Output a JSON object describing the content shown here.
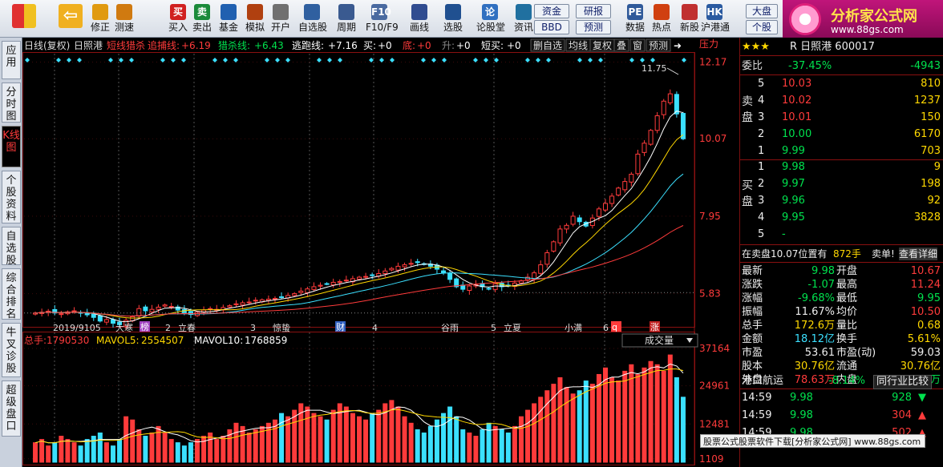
{
  "toolbar": {
    "buttons": [
      {
        "label": "",
        "icon": "grid-icon"
      },
      {
        "label": "",
        "icon": "back-arrow-icon"
      },
      {
        "label": "修正",
        "icon": "up-down-arrows-icon"
      },
      {
        "label": "测速",
        "icon": "clock-icon"
      },
      {
        "label": "买入",
        "icon": "buy-icon",
        "icon_text": "买"
      },
      {
        "label": "卖出",
        "icon": "sell-icon",
        "icon_text": "卖"
      },
      {
        "label": "基金",
        "icon": "fund-icon"
      },
      {
        "label": "模拟",
        "icon": "hammer-icon"
      },
      {
        "label": "开户",
        "icon": "lock-icon"
      },
      {
        "label": "自选股",
        "icon": "star-folder-icon"
      },
      {
        "label": "周期",
        "icon": "period-icon"
      },
      {
        "label": "F10/F9",
        "icon": "f10-icon",
        "icon_text": "F10"
      },
      {
        "label": "画线",
        "icon": "pencil-icon"
      },
      {
        "label": "选股",
        "icon": "select-stock-icon"
      },
      {
        "label": "论股堂",
        "icon": "forum-icon",
        "icon_text": "论"
      },
      {
        "label": "资讯",
        "icon": "news-icon"
      },
      {
        "label": "数据",
        "icon": "pe-icon",
        "icon_text": "PE"
      },
      {
        "label": "热点",
        "icon": "fire-icon"
      },
      {
        "label": "新股",
        "icon": "new-stock-icon"
      },
      {
        "label": "沪港通",
        "icon": "hk-connect-icon",
        "icon_text": "HK"
      }
    ],
    "pill_zijin": "资金",
    "pill_bbd": "BBD",
    "pill_yanbao": "研报",
    "pill_yuce": "预测",
    "pill_dapan": "大盘",
    "pill_gegu": "个股",
    "logo_title": "分析家公式网",
    "logo_url": "www.88gs.com"
  },
  "sidetabs": [
    "应用",
    "分时图",
    "K线图",
    "个股资料",
    "自选股",
    "综合排名",
    "牛叉诊股",
    "超级盘口"
  ],
  "sidetab_active": 2,
  "chart_header": {
    "title": "日线(复权)",
    "stock": "日照港",
    "ind1_name": "短线猎杀",
    "ind1_sub": "追捕线:",
    "ind1_val": "+6.19",
    "ind2_name": "猎杀线:",
    "ind2_val": "+6.43",
    "ind3_name": "逃跑线:",
    "ind3_val": "+7.16",
    "buy_label": "买:",
    "buy_val": "+0",
    "bottom_label": "底:",
    "bottom_val": "+0",
    "rise_label": "升:",
    "rise_val": "+0",
    "short_buy_label": "短买:",
    "short_buy_val": "+0",
    "buttons": [
      "删自选",
      "均线",
      "复权",
      "叠",
      "窗",
      "预测"
    ],
    "pressure_label": "压力"
  },
  "price_axis": [
    "12.17",
    "10.07",
    "7.95",
    "5.83"
  ],
  "vol_axis": [
    "37164",
    "24961",
    "12481",
    "1109"
  ],
  "time_axis": [
    "2019/9105",
    "大寒",
    "2",
    "立春",
    "3",
    "惊蛰",
    "4",
    "谷雨",
    "5",
    "立夏",
    "小满",
    "6"
  ],
  "time_badges": [
    "榜",
    "财",
    "q",
    "涨"
  ],
  "peak_label": "11.75",
  "vol_header": {
    "total_label": "总手:",
    "total_val": "1790530",
    "ma5_label": "MAVOL5:",
    "ma5_val": "2554507",
    "ma10_label": "MAVOL10:",
    "ma10_val": "1768859",
    "select": "成交量"
  },
  "chart_data": {
    "type": "candlestick",
    "title": "日照港 日线(复权)",
    "price_ticks": [
      12.17,
      10.07,
      7.95,
      5.83
    ],
    "price_ylim": [
      4.9,
      12.4
    ],
    "volume_ticks": [
      37164,
      24961,
      12481,
      1109
    ],
    "close": [
      5.3,
      5.32,
      5.35,
      5.3,
      5.28,
      5.33,
      5.36,
      5.31,
      5.25,
      5.18,
      5.08,
      5.12,
      5.02,
      4.98,
      5.1,
      5.2,
      5.42,
      5.36,
      5.4,
      5.46,
      5.52,
      5.48,
      5.38,
      5.3,
      5.26,
      5.32,
      5.38,
      5.42,
      5.4,
      5.45,
      5.5,
      5.55,
      5.58,
      5.6,
      5.65,
      5.66,
      5.68,
      5.7,
      5.74,
      5.78,
      5.83,
      5.9,
      5.96,
      6.02,
      6.06,
      6.1,
      6.14,
      6.16,
      6.2,
      6.24,
      6.28,
      6.3,
      6.34,
      6.38,
      6.45,
      6.52,
      6.58,
      6.62,
      6.66,
      6.68,
      6.64,
      6.58,
      6.5,
      6.4,
      6.22,
      6.02,
      5.95,
      6.04,
      6.08,
      6.02,
      5.96,
      6.1,
      6.02,
      6.06,
      6.12,
      6.18,
      6.28,
      6.4,
      6.62,
      6.95,
      7.25,
      7.6,
      7.7,
      7.95,
      7.8,
      7.68,
      7.9,
      8.15,
      8.3,
      8.5,
      8.72,
      8.9,
      9.1,
      9.65,
      9.95,
      10.3,
      10.7,
      11.1,
      11.3,
      10.75,
      10.07
    ],
    "volume": [
      6,
      7,
      5,
      6,
      8,
      7,
      6,
      5,
      7,
      8,
      9,
      6,
      5,
      7,
      14,
      13,
      10,
      8,
      9,
      11,
      9,
      7,
      6,
      5,
      6,
      7,
      8,
      9,
      7,
      8,
      10,
      12,
      11,
      9,
      10,
      11,
      12,
      13,
      15,
      14,
      16,
      18,
      17,
      15,
      14,
      13,
      16,
      18,
      17,
      15,
      14,
      13,
      15,
      16,
      18,
      19,
      17,
      14,
      12,
      10,
      9,
      11,
      13,
      15,
      17,
      14,
      10,
      9,
      8,
      10,
      12,
      11,
      10,
      9,
      11,
      14,
      16,
      18,
      20,
      22,
      24,
      26,
      23,
      21,
      22,
      25,
      24,
      27,
      29,
      26,
      25,
      28,
      30,
      27,
      29,
      31,
      30,
      28,
      33,
      26,
      20
    ]
  },
  "quote": {
    "stock_line": "R 日照港 600017",
    "stars": "★★★",
    "weibi_label": "委比",
    "weibi_pct": "-37.45%",
    "weibi_val": "-4943",
    "sell_label": "卖盘",
    "buy_label": "买盘",
    "sells": [
      {
        "n": "5",
        "p": "10.03",
        "v": "810"
      },
      {
        "n": "4",
        "p": "10.02",
        "v": "1237"
      },
      {
        "n": "3",
        "p": "10.01",
        "v": "150"
      },
      {
        "n": "2",
        "p": "10.00",
        "v": "6170"
      },
      {
        "n": "1",
        "p": "9.99",
        "v": "703"
      }
    ],
    "buys": [
      {
        "n": "1",
        "p": "9.98",
        "v": "9"
      },
      {
        "n": "2",
        "p": "9.97",
        "v": "198"
      },
      {
        "n": "3",
        "p": "9.96",
        "v": "92"
      },
      {
        "n": "4",
        "p": "9.95",
        "v": "3828"
      },
      {
        "n": "5",
        "p": "-",
        "v": ""
      }
    ],
    "order_line_left": "在卖盘10.07位置有",
    "order_line_mid": "872手",
    "order_line_right": "卖单!",
    "order_link": "查看详细",
    "stats_left": [
      {
        "k": "最新",
        "v": "9.98",
        "c": "grn"
      },
      {
        "k": "涨跌",
        "v": "-1.07",
        "c": "grn"
      },
      {
        "k": "涨幅",
        "v": "-9.68%",
        "c": "grn"
      },
      {
        "k": "振幅",
        "v": "11.67%",
        "c": "wht"
      },
      {
        "k": "总手",
        "v": "172.6万",
        "c": "yel"
      },
      {
        "k": "金额",
        "v": "18.12亿",
        "c": "cyn"
      },
      {
        "k": "市盈",
        "v": "53.61",
        "c": "wht"
      },
      {
        "k": "股本",
        "v": "30.76亿",
        "c": "yel"
      },
      {
        "k": "外盘",
        "v": "78.63万",
        "c": "red"
      }
    ],
    "stats_right": [
      {
        "k": "开盘",
        "v": "10.67",
        "c": "red"
      },
      {
        "k": "最高",
        "v": "11.24",
        "c": "red"
      },
      {
        "k": "最低",
        "v": "9.95",
        "c": "grn"
      },
      {
        "k": "均价",
        "v": "10.50",
        "c": "red"
      },
      {
        "k": "量比",
        "v": "0.68",
        "c": "yel"
      },
      {
        "k": "换手",
        "v": "5.61%",
        "c": "yel"
      },
      {
        "k": "市盈(动)",
        "v": "59.03",
        "c": "wht"
      },
      {
        "k": "流通",
        "v": "30.76亿",
        "c": "yel"
      },
      {
        "k": "内盘",
        "v": "93.95万",
        "c": "grn"
      }
    ],
    "sector_name": "港口航运",
    "sector_pct": "-8.14%",
    "sector_link": "同行业比较",
    "ticks": [
      {
        "t": "14:59",
        "p": "9.98",
        "v": "928",
        "dir": "down"
      },
      {
        "t": "14:59",
        "p": "9.98",
        "v": "304",
        "dir": "up"
      },
      {
        "t": "14:59",
        "p": "9.98",
        "v": "502",
        "dir": "up"
      }
    ]
  },
  "ad_text": "股票公式股票软件下载[分析家公式网] www.88gs.com",
  "colors": {
    "up": "#ff3b3b",
    "down": "#00e24e",
    "cyan": "#3be0ff",
    "frame": "#8a1010"
  }
}
